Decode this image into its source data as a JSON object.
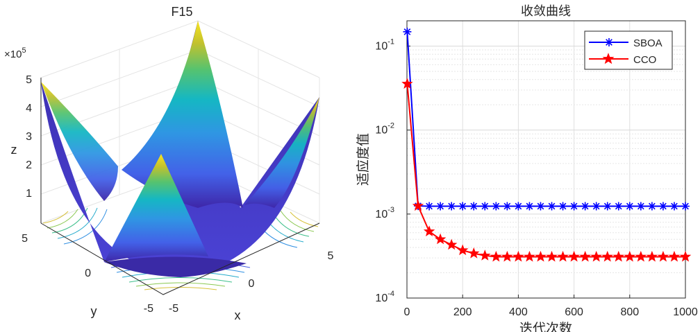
{
  "chart_data": [
    {
      "type": "surface",
      "title": "F15",
      "xlabel": "x",
      "ylabel": "y",
      "zlabel": "z",
      "z_exponent": "×10",
      "z_exponent_power": "5",
      "xlim": [
        -5,
        5
      ],
      "ylim": [
        -5,
        5
      ],
      "zlim": [
        0,
        5
      ],
      "x_ticks": [
        "-5",
        "0",
        "5"
      ],
      "y_ticks": [
        "-5",
        "0",
        "5"
      ],
      "z_ticks": [
        "1",
        "2",
        "3",
        "4",
        "5"
      ],
      "colormap": [
        "#3e26a8",
        "#4060e8",
        "#2f96e3",
        "#15b7c3",
        "#3cc583",
        "#a8c534",
        "#f5ba3a",
        "#f9e51e"
      ],
      "grid": true
    },
    {
      "type": "line",
      "title": "收敛曲线",
      "xlabel": "迭代次数",
      "ylabel": "适应度值",
      "yscale": "log",
      "xlim": [
        0,
        1000
      ],
      "ylim": [
        0.0001,
        0.2
      ],
      "x_ticks": [
        "0",
        "200",
        "400",
        "600",
        "800",
        "1000"
      ],
      "y_ticks": [
        {
          "base": "10",
          "exp": "-4",
          "value": 0.0001
        },
        {
          "base": "10",
          "exp": "-3",
          "value": 0.001
        },
        {
          "base": "10",
          "exp": "-2",
          "value": 0.01
        },
        {
          "base": "10",
          "exp": "-1",
          "value": 0.1
        }
      ],
      "grid": true,
      "legend_position": "top-right",
      "x": [
        1,
        40,
        80,
        120,
        160,
        200,
        240,
        280,
        320,
        360,
        400,
        440,
        480,
        520,
        560,
        600,
        640,
        680,
        720,
        760,
        800,
        840,
        880,
        920,
        960,
        1000
      ],
      "series": [
        {
          "name": "SBOA",
          "color": "#0000ff",
          "marker": "asterisk",
          "values": [
            0.148,
            0.00125,
            0.00124,
            0.00124,
            0.00124,
            0.00124,
            0.00124,
            0.00124,
            0.00124,
            0.00124,
            0.00124,
            0.00124,
            0.00124,
            0.00124,
            0.00124,
            0.00124,
            0.00124,
            0.00124,
            0.00124,
            0.00124,
            0.00124,
            0.00124,
            0.00124,
            0.00124,
            0.00124,
            0.00124
          ]
        },
        {
          "name": "CCO",
          "color": "#ff0000",
          "marker": "pentagram",
          "values": [
            0.0355,
            0.00125,
            0.00062,
            0.0005,
            0.00043,
            0.00037,
            0.00034,
            0.00032,
            0.00031,
            0.00031,
            0.00031,
            0.00031,
            0.00031,
            0.00031,
            0.00031,
            0.00031,
            0.00031,
            0.00031,
            0.00031,
            0.00031,
            0.00031,
            0.00031,
            0.00031,
            0.00031,
            0.00031,
            0.00031
          ]
        }
      ]
    }
  ]
}
